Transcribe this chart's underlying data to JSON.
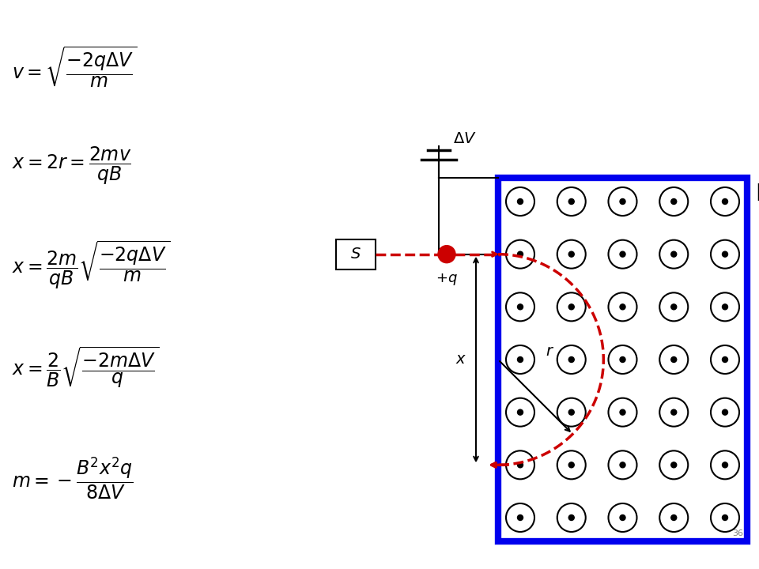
{
  "bg_color": "#ffffff",
  "blue_border": "#0000ee",
  "red_color": "#cc0000",
  "black_color": "#000000",
  "grid_rows": 7,
  "grid_cols": 5,
  "fig_w": 9.6,
  "fig_h": 7.2,
  "dpi": 100
}
